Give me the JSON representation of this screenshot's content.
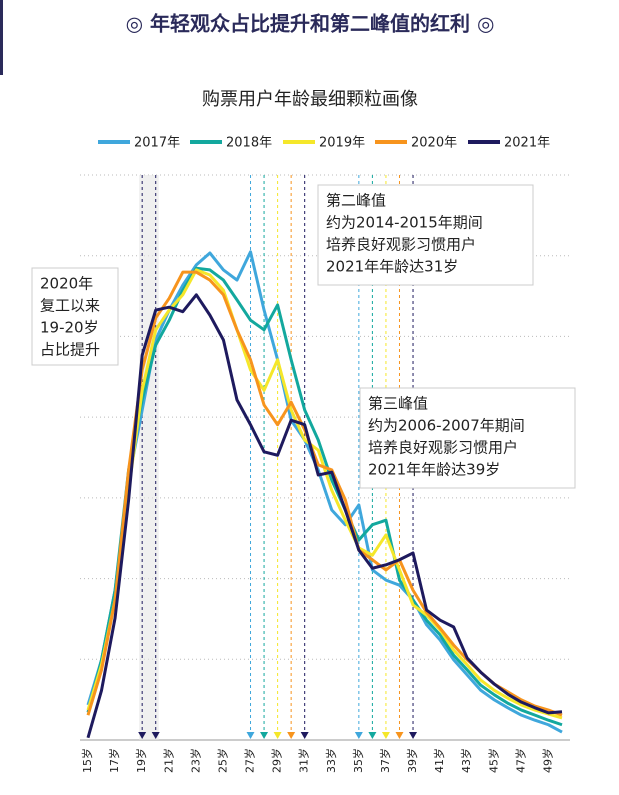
{
  "chart_data": {
    "type": "line",
    "title": "◎ 年轻观众占比提升和第二峰值的红利 ◎",
    "subtitle": "购票用户年龄最细颗粒画像",
    "categories": [
      "15岁",
      null,
      "17岁",
      null,
      "19岁",
      null,
      "21岁",
      null,
      "23岁",
      null,
      "25岁",
      null,
      "27岁",
      null,
      "29岁",
      null,
      "31岁",
      null,
      "33岁",
      null,
      "35岁",
      null,
      "37岁",
      null,
      "39岁",
      null,
      "41岁",
      null,
      "43岁",
      null,
      "45岁",
      null,
      "47岁",
      null,
      "49岁",
      null
    ],
    "ylim": [
      0,
      100
    ],
    "grid": true,
    "legend": "top",
    "series": [
      {
        "name": "2017年",
        "color": "#3fa7dc",
        "values": [
          6.2,
          14.2,
          26.5,
          46.0,
          58.4,
          70.8,
          76.1,
          80.5,
          84.1,
          86.2,
          83.2,
          81.4,
          86.4,
          76.1,
          67.3,
          56.6,
          53.1,
          47.8,
          40.7,
          38.1,
          41.6,
          30.1,
          28.3,
          27.4,
          24.8,
          20.4,
          17.7,
          14.2,
          11.5,
          8.8,
          7.1,
          5.7,
          4.4,
          3.5,
          2.7,
          1.4
        ]
      },
      {
        "name": "2018年",
        "color": "#13a89e",
        "values": [
          4.9,
          14.2,
          26.5,
          47.8,
          60.2,
          69.9,
          74.3,
          79.6,
          83.5,
          83.2,
          81.4,
          77.9,
          74.3,
          72.6,
          77.0,
          67.3,
          58.4,
          53.1,
          46.0,
          40.7,
          35.4,
          38.1,
          38.9,
          28.3,
          24.8,
          21.2,
          18.6,
          15.0,
          12.4,
          9.7,
          8.0,
          6.5,
          5.3,
          4.4,
          3.5,
          2.7
        ]
      },
      {
        "name": "2019年",
        "color": "#f5e72a",
        "values": [
          5.3,
          13.3,
          24.8,
          44.2,
          61.9,
          72.6,
          76.1,
          78.8,
          83.2,
          82.3,
          79.6,
          72.6,
          65.5,
          61.9,
          67.3,
          58.4,
          53.1,
          51.3,
          44.2,
          38.9,
          34.0,
          32.7,
          36.3,
          30.1,
          23.9,
          22.1,
          19.5,
          15.9,
          13.3,
          10.6,
          8.8,
          7.4,
          6.2,
          5.3,
          4.6,
          3.9
        ]
      },
      {
        "name": "2020年",
        "color": "#f7941d",
        "values": [
          4.4,
          12.4,
          24.8,
          47.8,
          65.5,
          74.7,
          78.2,
          82.8,
          82.8,
          81.4,
          78.8,
          72.6,
          67.3,
          59.3,
          55.8,
          59.8,
          54.9,
          48.7,
          47.8,
          42.5,
          33.6,
          31.9,
          30.1,
          31.9,
          26.5,
          22.6,
          19.8,
          16.8,
          14.2,
          12.0,
          9.9,
          8.5,
          7.1,
          6.0,
          5.3,
          4.4
        ]
      },
      {
        "name": "2021年",
        "color": "#1e1a5e",
        "values": [
          0.4,
          8.8,
          21.6,
          42.5,
          68.1,
          76.1,
          76.6,
          75.8,
          78.8,
          75.2,
          70.8,
          60.2,
          55.8,
          51.0,
          50.4,
          56.6,
          55.8,
          46.9,
          47.4,
          40.7,
          33.6,
          30.4,
          31.0,
          31.9,
          33.1,
          23.0,
          21.2,
          20.0,
          14.5,
          12.0,
          9.9,
          8.1,
          6.7,
          5.7,
          4.8,
          5.0
        ]
      }
    ],
    "annotations": [
      {
        "lines": [
          "2020年",
          "复工以来",
          "19-20岁",
          "占比提升"
        ]
      },
      {
        "lines": [
          "第二峰值",
          "约为2014-2015年期间",
          "培养良好观影习惯用户",
          "2021年年龄达31岁"
        ]
      },
      {
        "lines": [
          "第三峰值",
          "约为2006-2007年期间",
          "培养良好观影习惯用户",
          "2021年年龄达39岁"
        ]
      }
    ]
  }
}
